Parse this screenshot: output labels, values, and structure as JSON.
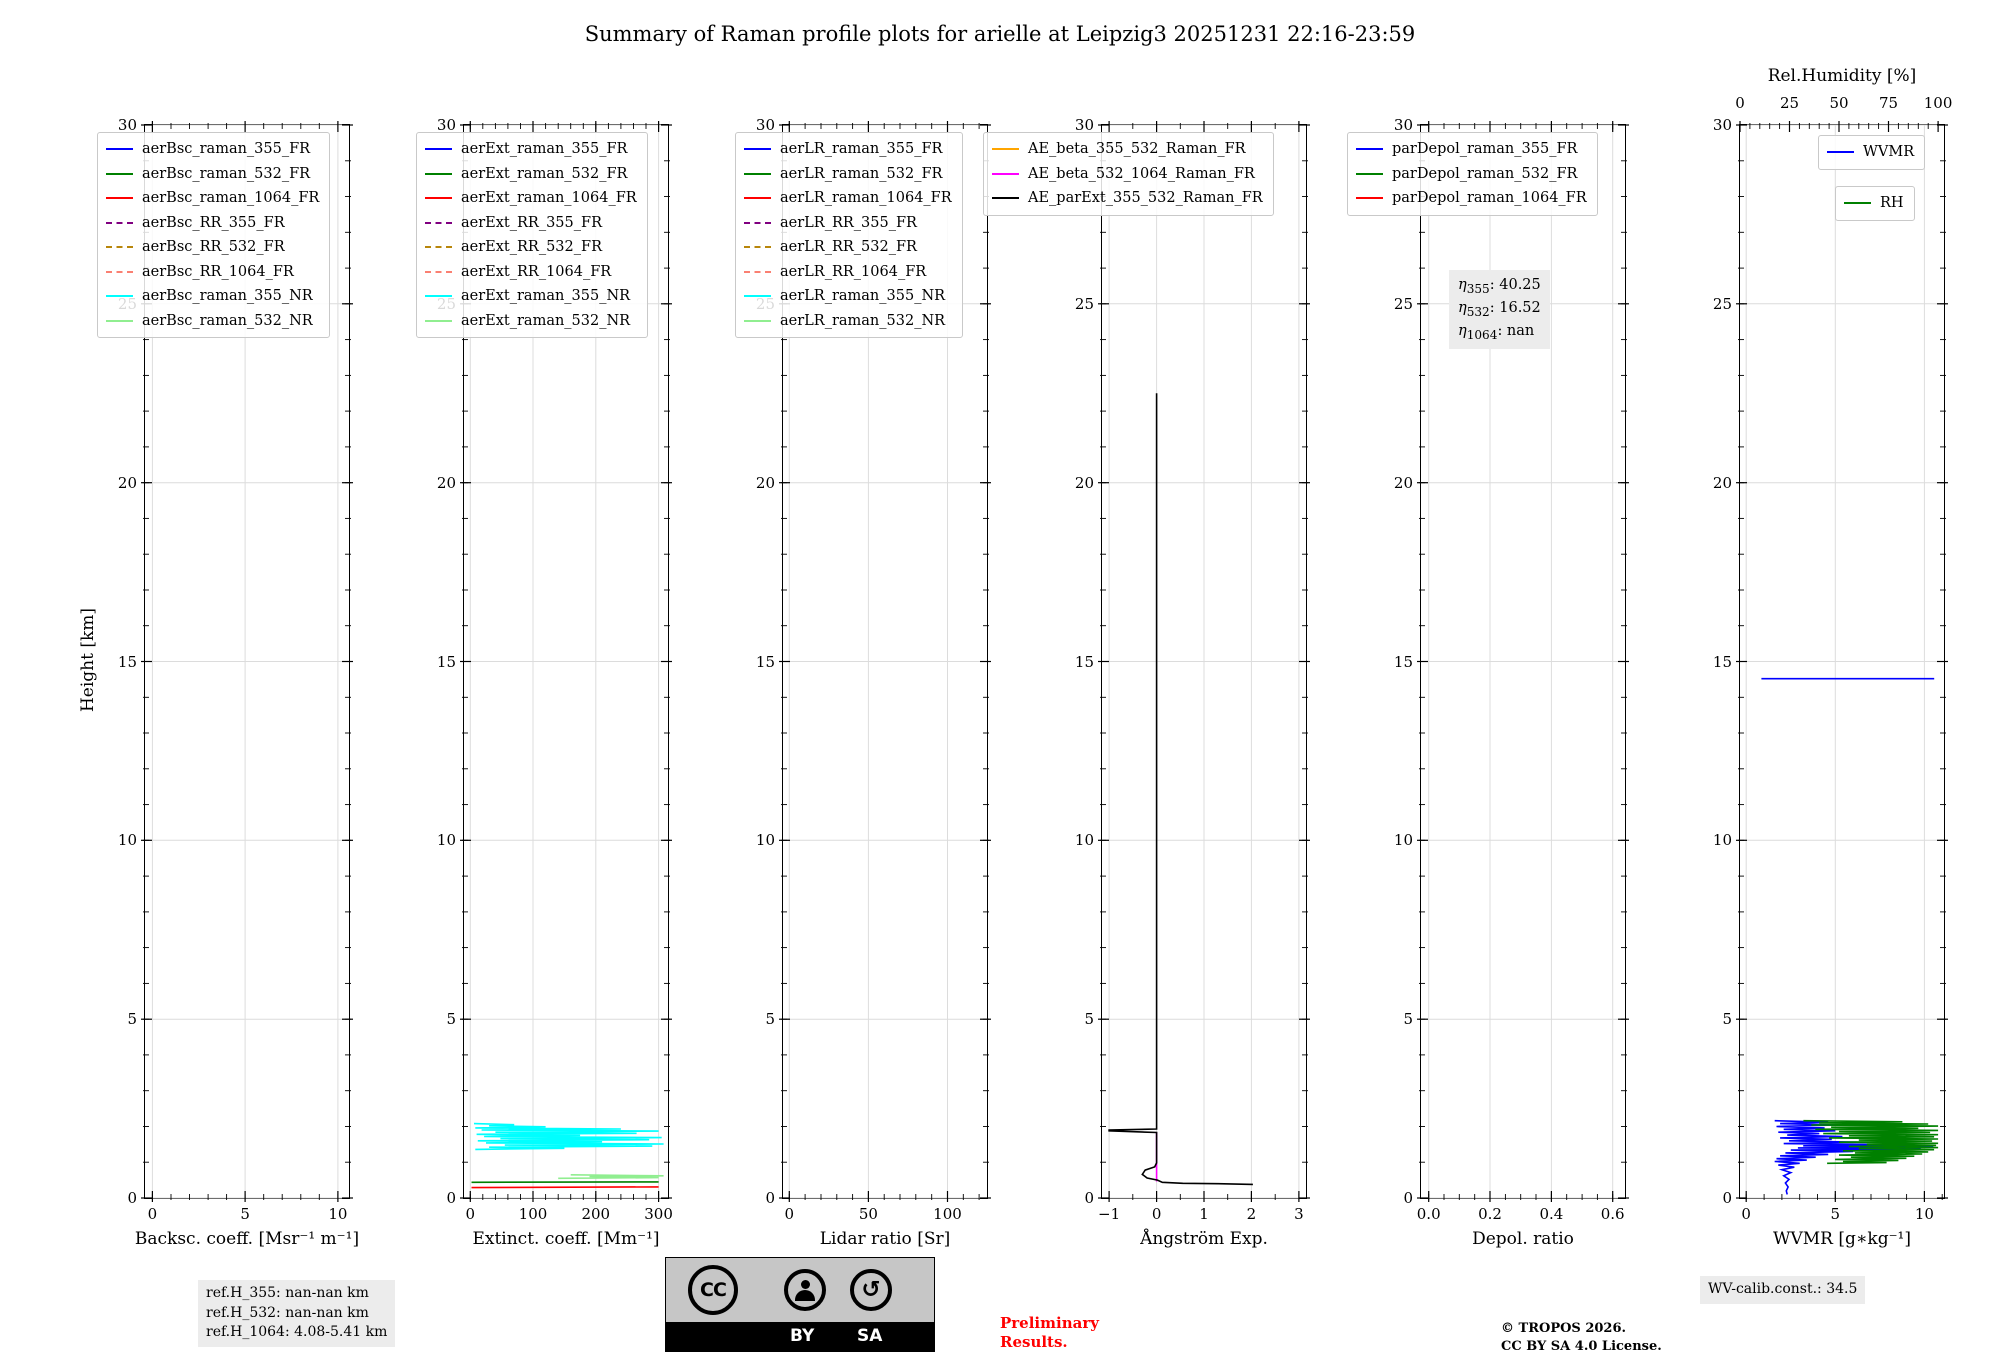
{
  "title": "Summary of Raman profile plots for arielle at Leipzig3 20251231 22:16-23:59",
  "ylabel": "Height [km]",
  "depol_annotation": [
    {
      "symbol": "η",
      "sub": "355",
      "value": "40.25"
    },
    {
      "symbol": "η",
      "sub": "532",
      "value": "16.52"
    },
    {
      "symbol": "η",
      "sub": "1064",
      "value": "nan"
    }
  ],
  "footer": {
    "ref_lines": [
      "ref.H_355: nan-nan km",
      "ref.H_532: nan-nan km",
      "ref.H_1064: 4.08-5.41 km"
    ],
    "preliminary": [
      "Preliminary",
      "Results."
    ],
    "copyright": [
      "© TROPOS 2026.",
      "CC BY SA 4.0 License."
    ],
    "wv_calib": "WV-calib.const.: 34.5",
    "cc_badge": {
      "cc_label": "CC",
      "by_label": "BY",
      "sa_label": "SA",
      "sa_icon": "↺"
    }
  },
  "chart_data": [
    {
      "id": "backscatter",
      "type": "line",
      "xlabel": "Backsc. coeff. [Msr⁻¹ m⁻¹]",
      "xlim": [
        -0.4,
        10.6
      ],
      "ylim": [
        0,
        30
      ],
      "xticks": [
        0,
        5,
        10
      ],
      "xtick_labels": [
        "0",
        "5",
        "10"
      ],
      "yticks": [
        0,
        5,
        10,
        15,
        20,
        25,
        30
      ],
      "grid": true,
      "legend_position": "upper left",
      "series": [
        {
          "label": "aerBsc_raman_355_FR",
          "color": "#0000ff",
          "dash": false,
          "data": []
        },
        {
          "label": "aerBsc_raman_532_FR",
          "color": "#008000",
          "dash": false,
          "data": []
        },
        {
          "label": "aerBsc_raman_1064_FR",
          "color": "#ff0000",
          "dash": false,
          "data": []
        },
        {
          "label": "aerBsc_RR_355_FR",
          "color": "#800080",
          "dash": true,
          "data": []
        },
        {
          "label": "aerBsc_RR_532_FR",
          "color": "#b8860b",
          "dash": true,
          "data": []
        },
        {
          "label": "aerBsc_RR_1064_FR",
          "color": "#fa8072",
          "dash": true,
          "data": []
        },
        {
          "label": "aerBsc_raman_355_NR",
          "color": "#00ffff",
          "dash": false,
          "data": []
        },
        {
          "label": "aerBsc_raman_532_NR",
          "color": "#90ee90",
          "dash": false,
          "data": []
        }
      ]
    },
    {
      "id": "extinction",
      "type": "line",
      "xlabel": "Extinct. coeff. [Mm⁻¹]",
      "xlim": [
        -10,
        315
      ],
      "ylim": [
        0,
        30
      ],
      "xticks": [
        0,
        100,
        200,
        300
      ],
      "xtick_labels": [
        "0",
        "100",
        "200",
        "300"
      ],
      "yticks": [
        0,
        5,
        10,
        15,
        20,
        25,
        30
      ],
      "grid": true,
      "legend_position": "upper left",
      "series": [
        {
          "label": "aerExt_raman_355_FR",
          "color": "#0000ff",
          "dash": false,
          "data": []
        },
        {
          "label": "aerExt_raman_532_FR",
          "color": "#008000",
          "dash": false,
          "data": [
            [
              2,
              0.44
            ],
            [
              300,
              0.45
            ]
          ]
        },
        {
          "label": "aerExt_raman_1064_FR",
          "color": "#ff0000",
          "dash": false,
          "data": [
            [
              2,
              0.29
            ],
            [
              300,
              0.31
            ]
          ]
        },
        {
          "label": "aerExt_RR_355_FR",
          "color": "#800080",
          "dash": true,
          "data": []
        },
        {
          "label": "aerExt_RR_532_FR",
          "color": "#b8860b",
          "dash": true,
          "data": []
        },
        {
          "label": "aerExt_RR_1064_FR",
          "color": "#fa8072",
          "dash": true,
          "data": []
        },
        {
          "label": "aerExt_raman_355_NR",
          "color": "#00ffff",
          "dash": false,
          "data": [
            [
              8,
              1.36
            ],
            [
              150,
              1.39
            ],
            [
              30,
              1.42
            ],
            [
              290,
              1.45
            ],
            [
              55,
              1.48
            ],
            [
              308,
              1.51
            ],
            [
              25,
              1.54
            ],
            [
              210,
              1.57
            ],
            [
              12,
              1.6
            ],
            [
              285,
              1.63
            ],
            [
              48,
              1.66
            ],
            [
              305,
              1.69
            ],
            [
              22,
              1.72
            ],
            [
              175,
              1.75
            ],
            [
              10,
              1.78
            ],
            [
              265,
              1.81
            ],
            [
              40,
              1.84
            ],
            [
              300,
              1.87
            ],
            [
              18,
              1.9
            ],
            [
              240,
              1.93
            ],
            [
              8,
              1.96
            ],
            [
              120,
              1.99
            ],
            [
              30,
              2.02
            ],
            [
              70,
              2.05
            ],
            [
              6,
              2.08
            ]
          ]
        },
        {
          "label": "aerExt_raman_532_NR",
          "color": "#90ee90",
          "dash": false,
          "data": [
            [
              140,
              0.55
            ],
            [
              300,
              0.57
            ],
            [
              190,
              0.6
            ],
            [
              308,
              0.62
            ],
            [
              160,
              0.65
            ]
          ]
        }
      ]
    },
    {
      "id": "lidar-ratio",
      "type": "line",
      "xlabel": "Lidar ratio [Sr]",
      "xlim": [
        -4,
        125
      ],
      "ylim": [
        0,
        30
      ],
      "xticks": [
        0,
        50,
        100
      ],
      "xtick_labels": [
        "0",
        "50",
        "100"
      ],
      "yticks": [
        0,
        5,
        10,
        15,
        20,
        25,
        30
      ],
      "grid": true,
      "legend_position": "upper left",
      "series": [
        {
          "label": "aerLR_raman_355_FR",
          "color": "#0000ff",
          "dash": false,
          "data": []
        },
        {
          "label": "aerLR_raman_532_FR",
          "color": "#008000",
          "dash": false,
          "data": []
        },
        {
          "label": "aerLR_raman_1064_FR",
          "color": "#ff0000",
          "dash": false,
          "data": []
        },
        {
          "label": "aerLR_RR_355_FR",
          "color": "#800080",
          "dash": true,
          "data": []
        },
        {
          "label": "aerLR_RR_532_FR",
          "color": "#b8860b",
          "dash": true,
          "data": []
        },
        {
          "label": "aerLR_RR_1064_FR",
          "color": "#fa8072",
          "dash": true,
          "data": []
        },
        {
          "label": "aerLR_raman_355_NR",
          "color": "#00ffff",
          "dash": false,
          "data": []
        },
        {
          "label": "aerLR_raman_532_NR",
          "color": "#90ee90",
          "dash": false,
          "data": []
        }
      ]
    },
    {
      "id": "angstrom",
      "type": "line",
      "xlabel": "Ångström Exp.",
      "xlim": [
        -1.15,
        3.15
      ],
      "ylim": [
        0,
        30
      ],
      "xticks": [
        -1,
        0,
        1,
        2,
        3
      ],
      "xtick_labels": [
        "−1",
        "0",
        "1",
        "2",
        "3"
      ],
      "yticks": [
        0,
        5,
        10,
        15,
        20,
        25,
        30
      ],
      "grid": true,
      "legend_position": "upper left",
      "series": [
        {
          "label": "AE_beta_355_532_Raman_FR",
          "color": "#ffa500",
          "dash": false,
          "data": []
        },
        {
          "label": "AE_beta_532_1064_Raman_FR",
          "color": "#ff00ff",
          "dash": false,
          "data": [
            [
              0,
              0.46
            ],
            [
              0,
              1.84
            ]
          ]
        },
        {
          "label": "AE_parExt_355_532_Raman_FR",
          "color": "#000000",
          "dash": false,
          "data": [
            [
              2.03,
              0.38
            ],
            [
              1.3,
              0.4
            ],
            [
              0.55,
              0.41
            ],
            [
              0.12,
              0.44
            ],
            [
              0.02,
              0.5
            ],
            [
              -0.2,
              0.56
            ],
            [
              -0.3,
              0.66
            ],
            [
              -0.24,
              0.78
            ],
            [
              -0.04,
              0.87
            ],
            [
              0,
              0.98
            ],
            [
              0,
              1.83
            ],
            [
              -1.0,
              1.88
            ],
            [
              -1.0,
              1.9
            ],
            [
              0,
              1.93
            ],
            [
              0,
              22.5
            ]
          ]
        }
      ]
    },
    {
      "id": "depol",
      "type": "line",
      "xlabel": "Depol. ratio",
      "xlim": [
        -0.025,
        0.64
      ],
      "ylim": [
        0,
        30
      ],
      "xticks": [
        0,
        0.2,
        0.4,
        0.6
      ],
      "xtick_labels": [
        "0.0",
        "0.2",
        "0.4",
        "0.6"
      ],
      "yticks": [
        0,
        5,
        10,
        15,
        20,
        25,
        30
      ],
      "grid": true,
      "legend_position": "upper left",
      "series": [
        {
          "label": "parDepol_raman_355_FR",
          "color": "#0000ff",
          "dash": false,
          "data": []
        },
        {
          "label": "parDepol_raman_532_FR",
          "color": "#008000",
          "dash": false,
          "data": []
        },
        {
          "label": "parDepol_raman_1064_FR",
          "color": "#ff0000",
          "dash": false,
          "data": []
        }
      ]
    },
    {
      "id": "wvmr",
      "type": "line",
      "xlabel": "WVMR [g∗kg⁻¹]",
      "xlim": [
        -0.35,
        11.1
      ],
      "ylim": [
        0,
        30
      ],
      "xticks": [
        0,
        5,
        10
      ],
      "xtick_labels": [
        "0",
        "5",
        "10"
      ],
      "yticks": [
        0,
        5,
        10,
        15,
        20,
        25,
        30
      ],
      "grid": true,
      "legend_position": "upper right",
      "top_axis": {
        "label": "Rel.Humidity [%]",
        "xlim": [
          0,
          103
        ],
        "xticks": [
          0,
          25,
          50,
          75,
          100
        ],
        "xtick_labels": [
          "0",
          "25",
          "50",
          "75",
          "100"
        ]
      },
      "legend_groups": [
        [
          0
        ],
        [
          1
        ]
      ],
      "series": [
        {
          "label": "WVMR",
          "color": "#0000ff",
          "dash": false,
          "axis": "bottom",
          "data": [
            [
              0.85,
              14.52
            ],
            [
              10.55,
              14.52
            ],
            null,
            [
              1.6,
              2.16
            ],
            [
              4.6,
              2.12
            ],
            [
              1.9,
              2.08
            ],
            [
              5.1,
              2.04
            ],
            [
              1.7,
              2.0
            ],
            [
              4.4,
              1.96
            ],
            [
              2.1,
              1.92
            ],
            [
              5.0,
              1.88
            ],
            [
              1.8,
              1.84
            ],
            [
              4.1,
              1.8
            ],
            [
              2.3,
              1.76
            ],
            [
              5.4,
              1.72
            ],
            [
              1.9,
              1.68
            ],
            [
              4.8,
              1.64
            ],
            [
              2.4,
              1.6
            ],
            [
              6.2,
              1.56
            ],
            [
              2.1,
              1.52
            ],
            [
              8.0,
              1.49
            ],
            [
              3.2,
              1.46
            ],
            [
              10.5,
              1.43
            ],
            [
              2.9,
              1.4
            ],
            [
              9.8,
              1.37
            ],
            [
              2.5,
              1.34
            ],
            [
              6.0,
              1.3
            ],
            [
              2.2,
              1.26
            ],
            [
              4.6,
              1.22
            ],
            [
              1.9,
              1.18
            ],
            [
              3.9,
              1.14
            ],
            [
              1.7,
              1.1
            ],
            [
              3.4,
              1.06
            ],
            [
              1.6,
              1.02
            ],
            [
              3.0,
              0.97
            ],
            [
              1.8,
              0.92
            ],
            [
              2.7,
              0.86
            ],
            [
              2.0,
              0.79
            ],
            [
              2.5,
              0.71
            ],
            [
              2.1,
              0.62
            ],
            [
              2.4,
              0.52
            ],
            [
              2.2,
              0.42
            ],
            [
              2.35,
              0.31
            ],
            [
              2.25,
              0.2
            ],
            [
              2.3,
              0.1
            ]
          ]
        },
        {
          "label": "RH",
          "color": "#008000",
          "dash": false,
          "axis": "top",
          "data": [
            [
              32,
              2.16
            ],
            [
              82,
              2.13
            ],
            [
              40,
              2.1
            ],
            [
              95,
              2.07
            ],
            [
              36,
              2.04
            ],
            [
              100,
              2.01
            ],
            [
              46,
              1.98
            ],
            [
              90,
              1.95
            ],
            [
              38,
              1.92
            ],
            [
              100,
              1.89
            ],
            [
              50,
              1.86
            ],
            [
              96,
              1.83
            ],
            [
              42,
              1.8
            ],
            [
              100,
              1.77
            ],
            [
              55,
              1.74
            ],
            [
              98,
              1.71
            ],
            [
              45,
              1.68
            ],
            [
              100,
              1.65
            ],
            [
              60,
              1.62
            ],
            [
              97,
              1.59
            ],
            [
              50,
              1.56
            ],
            [
              100,
              1.53
            ],
            [
              64,
              1.5
            ],
            [
              99,
              1.47
            ],
            [
              55,
              1.44
            ],
            [
              100,
              1.41
            ],
            [
              60,
              1.38
            ],
            [
              98,
              1.35
            ],
            [
              52,
              1.32
            ],
            [
              95,
              1.29
            ],
            [
              58,
              1.26
            ],
            [
              92,
              1.23
            ],
            [
              50,
              1.2
            ],
            [
              88,
              1.17
            ],
            [
              56,
              1.14
            ],
            [
              84,
              1.11
            ],
            [
              48,
              1.08
            ],
            [
              80,
              1.05
            ],
            [
              52,
              1.02
            ],
            [
              74,
              0.99
            ],
            [
              44,
              0.97
            ]
          ]
        }
      ]
    }
  ]
}
